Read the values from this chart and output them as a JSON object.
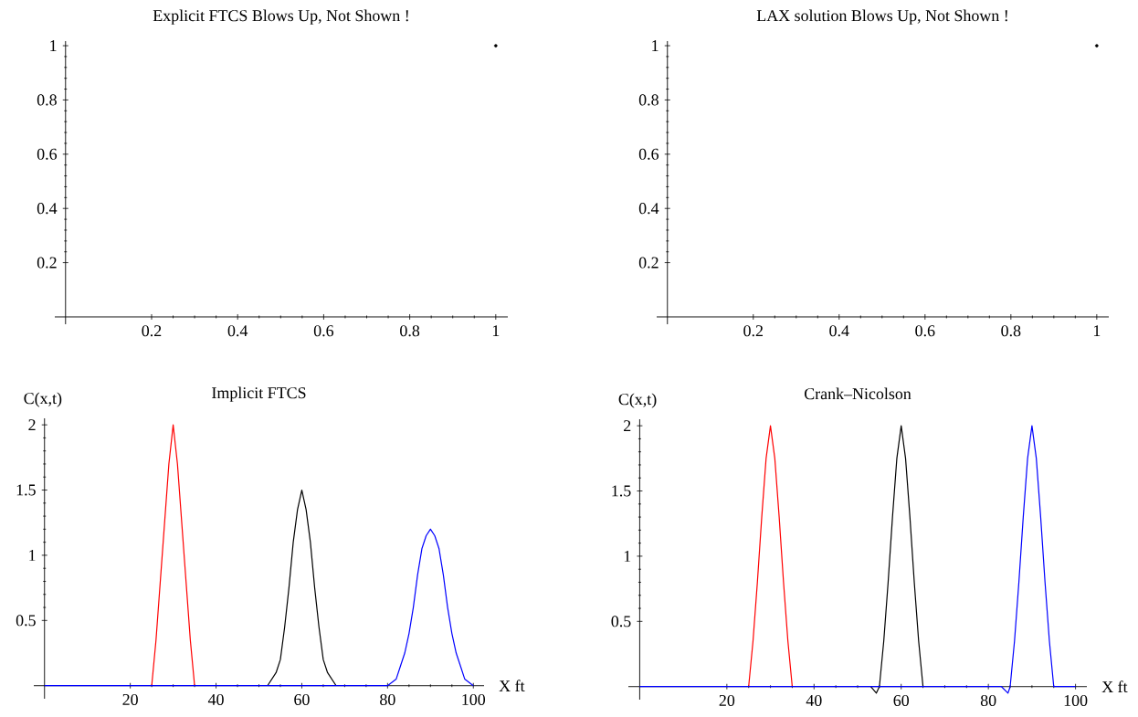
{
  "chart_data": [
    {
      "type": "scatter",
      "title": "Explicit FTCS Blows Up, Not Shown !",
      "xlim": [
        -0.025,
        1.028
      ],
      "ylim": [
        -0.027,
        1.017
      ],
      "xticks": [
        0.2,
        0.4,
        0.6,
        0.8,
        1
      ],
      "yticks": [
        0.2,
        0.4,
        0.6,
        0.8,
        1
      ],
      "series": [
        {
          "color": "#000000",
          "x": [
            1
          ],
          "values": [
            1
          ]
        }
      ]
    },
    {
      "type": "scatter",
      "title": "LAX solution Blows Up, Not Shown !",
      "xlim": [
        -0.025,
        1.028
      ],
      "ylim": [
        -0.027,
        1.017
      ],
      "xticks": [
        0.2,
        0.4,
        0.6,
        0.8,
        1
      ],
      "yticks": [
        0.2,
        0.4,
        0.6,
        0.8,
        1
      ],
      "series": [
        {
          "color": "#000000",
          "x": [
            1
          ],
          "values": [
            1
          ]
        }
      ]
    },
    {
      "type": "line",
      "title": "Implicit FTCS",
      "xlabel": "X ft",
      "ylabel": "C(x,t)",
      "xlim": [
        -2.5,
        102.5
      ],
      "ylim": [
        -0.1,
        2.05
      ],
      "xticks": [
        20,
        40,
        60,
        80,
        100
      ],
      "yticks": [
        0.5,
        1,
        1.5,
        2
      ],
      "series": [
        {
          "color": "#ff0000",
          "x": [
            25,
            26,
            27,
            28,
            29,
            30,
            31,
            32,
            33,
            34,
            35
          ],
          "values": [
            0,
            0.35,
            0.8,
            1.25,
            1.7,
            2.0,
            1.7,
            1.25,
            0.8,
            0.35,
            0
          ]
        },
        {
          "color": "#000000",
          "x": [
            52,
            54,
            55,
            56,
            57,
            58,
            59,
            60,
            61,
            62,
            63,
            64,
            65,
            66,
            68
          ],
          "values": [
            0,
            0.1,
            0.2,
            0.45,
            0.75,
            1.1,
            1.35,
            1.5,
            1.35,
            1.1,
            0.75,
            0.45,
            0.2,
            0.1,
            0
          ]
        },
        {
          "color": "#0000ff",
          "x": [
            0,
            80,
            82,
            83,
            84,
            85,
            86,
            87,
            88,
            89,
            90,
            91,
            92,
            93,
            94,
            95,
            96,
            97,
            98,
            100
          ],
          "values": [
            0,
            0,
            0.05,
            0.15,
            0.25,
            0.4,
            0.6,
            0.85,
            1.05,
            1.15,
            1.2,
            1.15,
            1.05,
            0.85,
            0.6,
            0.4,
            0.25,
            0.15,
            0.05,
            0
          ]
        }
      ]
    },
    {
      "type": "line",
      "title": "Crank–Nicolson",
      "xlabel": "X ft",
      "ylabel": "C(x,t)",
      "xlim": [
        -2.6,
        102.6
      ],
      "ylim": [
        -0.1,
        2.05
      ],
      "xticks": [
        20,
        40,
        60,
        80,
        100
      ],
      "yticks": [
        0.5,
        1,
        1.5,
        2
      ],
      "series": [
        {
          "color": "#ff0000",
          "x": [
            25,
            26,
            27,
            28,
            29,
            30,
            31,
            32,
            33,
            34,
            35
          ],
          "values": [
            0,
            0.35,
            0.8,
            1.3,
            1.75,
            2.0,
            1.75,
            1.3,
            0.8,
            0.35,
            0
          ]
        },
        {
          "color": "#000000",
          "x": [
            53,
            54.3,
            55,
            56,
            57,
            58,
            59,
            60,
            61,
            62,
            63,
            64,
            65
          ],
          "values": [
            0,
            -0.05,
            0,
            0.35,
            0.8,
            1.3,
            1.75,
            2.0,
            1.75,
            1.3,
            0.8,
            0.35,
            0
          ]
        },
        {
          "color": "#0000ff",
          "x": [
            0,
            83,
            84.5,
            85,
            86,
            87,
            88,
            89,
            90,
            91,
            92,
            93,
            94,
            95,
            100
          ],
          "values": [
            0,
            0,
            -0.05,
            0,
            0.35,
            0.8,
            1.3,
            1.75,
            2.0,
            1.75,
            1.3,
            0.8,
            0.35,
            0,
            0
          ]
        }
      ]
    }
  ]
}
